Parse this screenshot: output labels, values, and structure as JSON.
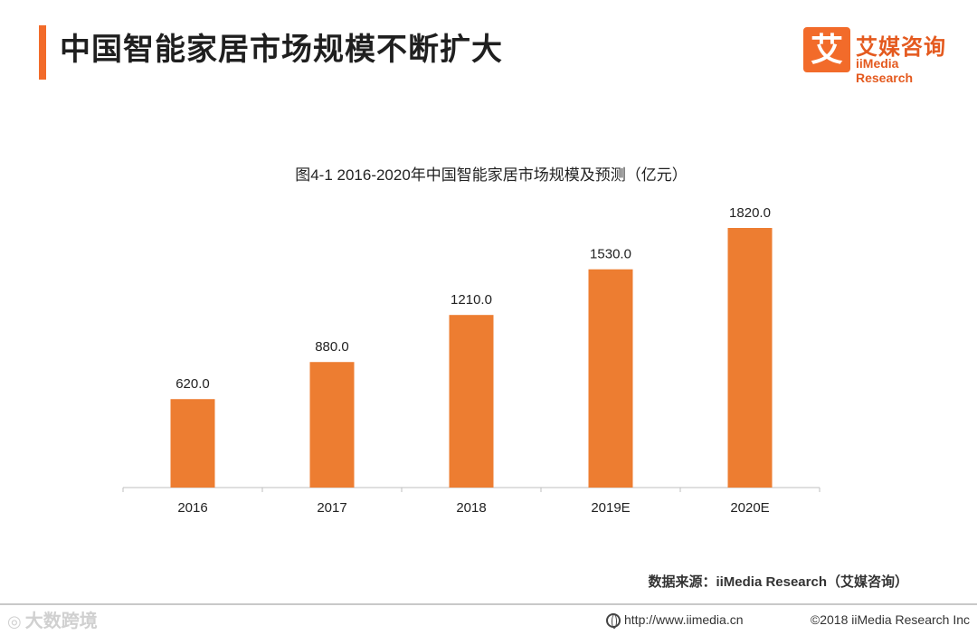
{
  "header": {
    "title": "中国智能家居市场规模不断扩大",
    "logo_mark": "艾",
    "logo_cn": "艾媒咨询",
    "logo_en": "iiMedia Research"
  },
  "chart_data": {
    "type": "bar",
    "title": "图4-1 2016-2020年中国智能家居市场规模及预测（亿元）",
    "categories": [
      "2016",
      "2017",
      "2018",
      "2019E",
      "2020E"
    ],
    "values": [
      620.0,
      880.0,
      1210.0,
      1530.0,
      1820.0
    ],
    "data_labels": [
      "620.0",
      "880.0",
      "1210.0",
      "1530.0",
      "1820.0"
    ],
    "ylim": [
      0,
      1850
    ],
    "bar_color": "#ed7d31",
    "grid": false,
    "legend": "none",
    "xlabel": "",
    "ylabel": ""
  },
  "footer": {
    "source": "数据来源：iiMedia Research（艾媒咨询）",
    "url": "http://www.iimedia.cn",
    "copyright": "©2018  iiMedia Research  Inc",
    "watermark": "大数跨境"
  },
  "colors": {
    "accent": "#f26b2a",
    "bar": "#ed7d31"
  }
}
